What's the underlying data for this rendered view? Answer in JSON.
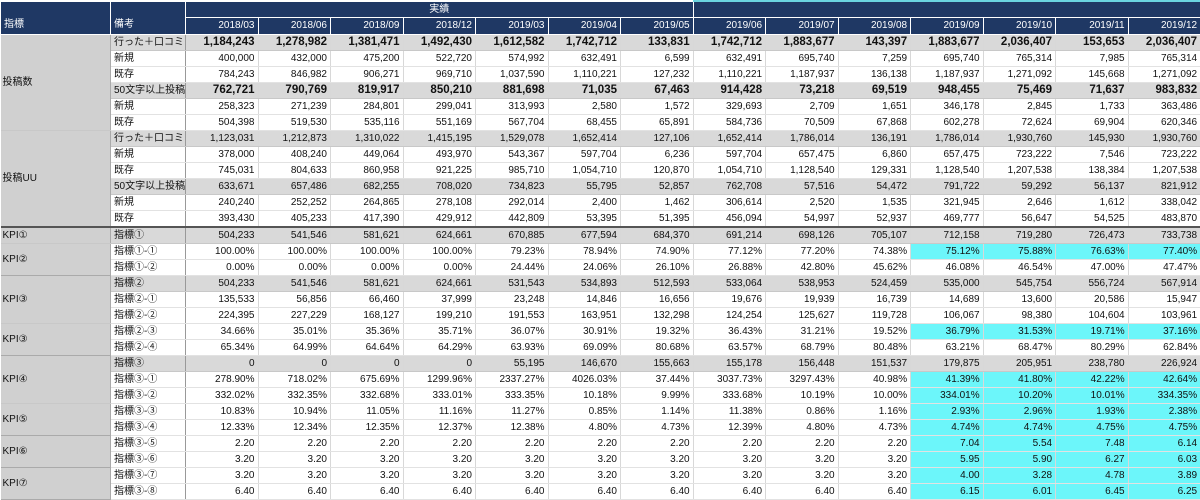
{
  "header": {
    "index_label": "指標",
    "note_label": "備考",
    "actual_label": "実績",
    "months": [
      "2018/03",
      "2018/06",
      "2018/09",
      "2018/12",
      "2019/03",
      "2019/04",
      "2019/05",
      "2019/06",
      "2019/07",
      "2019/08",
      "2019/09",
      "2019/10",
      "2019/11",
      "2019/12"
    ]
  },
  "colors": {
    "header_bg": "#1f3864",
    "group_gray": "#d9d9d9",
    "highlight_cyan": "#6cf6fa"
  },
  "rows": [
    {
      "group": "投稿数",
      "span": 6,
      "label": "行った＋口コミ",
      "gray": true,
      "bold": true,
      "values": [
        "1,184,243",
        "1,278,982",
        "1,381,471",
        "1,492,430",
        "1,612,582",
        "1,742,712",
        "133,831",
        "1,742,712",
        "1,883,677",
        "143,397",
        "1,883,677",
        "2,036,407",
        "153,653",
        "2,036,407"
      ],
      "hl": []
    },
    {
      "label": "新規",
      "values": [
        "400,000",
        "432,000",
        "475,200",
        "522,720",
        "574,992",
        "632,491",
        "6,599",
        "632,491",
        "695,740",
        "7,259",
        "695,740",
        "765,314",
        "7,985",
        "765,314"
      ],
      "hl": []
    },
    {
      "label": "既存",
      "values": [
        "784,243",
        "846,982",
        "906,271",
        "969,710",
        "1,037,590",
        "1,110,221",
        "127,232",
        "1,110,221",
        "1,187,937",
        "136,138",
        "1,187,937",
        "1,271,092",
        "145,668",
        "1,271,092"
      ],
      "hl": []
    },
    {
      "label": "50文字以上投稿",
      "gray": true,
      "bold": true,
      "values": [
        "762,721",
        "790,769",
        "819,917",
        "850,210",
        "881,698",
        "71,035",
        "67,463",
        "914,428",
        "73,218",
        "69,519",
        "948,455",
        "75,469",
        "71,637",
        "983,832"
      ],
      "hl": []
    },
    {
      "label": "新規",
      "values": [
        "258,323",
        "271,239",
        "284,801",
        "299,041",
        "313,993",
        "2,580",
        "1,572",
        "329,693",
        "2,709",
        "1,651",
        "346,178",
        "2,845",
        "1,733",
        "363,486"
      ],
      "hl": []
    },
    {
      "label": "既存",
      "values": [
        "504,398",
        "519,530",
        "535,116",
        "551,169",
        "567,704",
        "68,455",
        "65,891",
        "584,736",
        "70,509",
        "67,868",
        "602,278",
        "72,624",
        "69,904",
        "620,346"
      ],
      "hl": []
    },
    {
      "group": "投稿UU",
      "span": 6,
      "label": "行った＋口コミ",
      "gray": true,
      "values": [
        "1,123,031",
        "1,212,873",
        "1,310,022",
        "1,415,195",
        "1,529,078",
        "1,652,414",
        "127,106",
        "1,652,414",
        "1,786,014",
        "136,191",
        "1,786,014",
        "1,930,760",
        "145,930",
        "1,930,760"
      ],
      "hl": []
    },
    {
      "label": "新規",
      "values": [
        "378,000",
        "408,240",
        "449,064",
        "493,970",
        "543,367",
        "597,704",
        "6,236",
        "597,704",
        "657,475",
        "6,860",
        "657,475",
        "723,222",
        "7,546",
        "723,222"
      ],
      "hl": []
    },
    {
      "label": "既存",
      "values": [
        "745,031",
        "804,633",
        "860,958",
        "921,225",
        "985,710",
        "1,054,710",
        "120,870",
        "1,054,710",
        "1,128,540",
        "129,331",
        "1,128,540",
        "1,207,538",
        "138,384",
        "1,207,538"
      ],
      "hl": []
    },
    {
      "label": "50文字以上投稿",
      "gray": true,
      "values": [
        "633,671",
        "657,486",
        "682,255",
        "708,020",
        "734,823",
        "55,795",
        "52,857",
        "762,708",
        "57,516",
        "54,472",
        "791,722",
        "59,292",
        "56,137",
        "821,912"
      ],
      "hl": []
    },
    {
      "label": "新規",
      "values": [
        "240,240",
        "252,252",
        "264,865",
        "278,108",
        "292,014",
        "2,400",
        "1,462",
        "306,614",
        "2,520",
        "1,535",
        "321,945",
        "2,646",
        "1,612",
        "338,042"
      ],
      "hl": []
    },
    {
      "label": "既存",
      "values": [
        "393,430",
        "405,233",
        "417,390",
        "429,912",
        "442,809",
        "53,395",
        "51,395",
        "456,094",
        "54,997",
        "52,937",
        "469,777",
        "56,647",
        "54,525",
        "483,870"
      ],
      "hl": []
    },
    {
      "group": "KPI①",
      "span": 1,
      "sep": true,
      "label": "指標①",
      "gray": true,
      "values": [
        "504,233",
        "541,546",
        "581,621",
        "624,661",
        "670,885",
        "677,594",
        "684,370",
        "691,214",
        "698,126",
        "705,107",
        "712,158",
        "719,280",
        "726,473",
        "733,738"
      ],
      "hl": []
    },
    {
      "group": "KPI②",
      "span": 2,
      "label": "指標①-①",
      "values": [
        "100.00%",
        "100.00%",
        "100.00%",
        "100.00%",
        "79.23%",
        "78.94%",
        "74.90%",
        "77.12%",
        "77.20%",
        "74.38%",
        "75.12%",
        "75.88%",
        "76.63%",
        "77.40%"
      ],
      "hl": [
        10,
        11,
        12,
        13
      ]
    },
    {
      "label": "指標①-②",
      "values": [
        "0.00%",
        "0.00%",
        "0.00%",
        "0.00%",
        "24.44%",
        "24.06%",
        "26.10%",
        "26.88%",
        "42.80%",
        "45.62%",
        "46.08%",
        "46.54%",
        "47.00%",
        "47.47%"
      ],
      "hl": []
    },
    {
      "group": "KPI③",
      "span": 3,
      "label": "指標②",
      "gray": true,
      "values": [
        "504,233",
        "541,546",
        "581,621",
        "624,661",
        "531,543",
        "534,893",
        "512,593",
        "533,064",
        "538,953",
        "524,459",
        "535,000",
        "545,754",
        "556,724",
        "567,914"
      ],
      "hl": []
    },
    {
      "label": "指標②-①",
      "values": [
        "135,533",
        "56,856",
        "66,460",
        "37,999",
        "23,248",
        "14,846",
        "16,656",
        "19,676",
        "19,939",
        "16,739",
        "14,689",
        "13,600",
        "20,586",
        "15,947"
      ],
      "hl": []
    },
    {
      "label": "指標②-②",
      "values": [
        "224,395",
        "227,229",
        "168,127",
        "199,210",
        "191,553",
        "163,951",
        "132,298",
        "124,254",
        "125,627",
        "119,728",
        "106,067",
        "98,380",
        "104,604",
        "103,961"
      ],
      "hl": []
    },
    {
      "group": "KPI③",
      "span": 2,
      "label": "指標②-③",
      "values": [
        "34.66%",
        "35.01%",
        "35.36%",
        "35.71%",
        "36.07%",
        "30.91%",
        "19.32%",
        "36.43%",
        "31.21%",
        "19.52%",
        "36.79%",
        "31.53%",
        "19.71%",
        "37.16%"
      ],
      "hl": [
        10,
        11,
        12,
        13
      ]
    },
    {
      "label": "指標②-④",
      "values": [
        "65.34%",
        "64.99%",
        "64.64%",
        "64.29%",
        "63.93%",
        "69.09%",
        "80.68%",
        "63.57%",
        "68.79%",
        "80.48%",
        "63.21%",
        "68.47%",
        "80.29%",
        "62.84%"
      ],
      "hl": []
    },
    {
      "group": "KPI④",
      "span": 3,
      "label": "指標③",
      "gray": true,
      "values": [
        "0",
        "0",
        "0",
        "0",
        "55,195",
        "146,670",
        "155,663",
        "155,178",
        "156,448",
        "151,537",
        "179,875",
        "205,951",
        "238,780",
        "226,924"
      ],
      "hl": []
    },
    {
      "label": "指標③-①",
      "values": [
        "278.90%",
        "718.02%",
        "675.69%",
        "1299.96%",
        "2337.27%",
        "4026.03%",
        "37.44%",
        "3037.73%",
        "3297.43%",
        "40.98%",
        "41.39%",
        "41.80%",
        "42.22%",
        "42.64%"
      ],
      "hl": [
        10,
        11,
        12,
        13
      ]
    },
    {
      "label": "指標③-②",
      "values": [
        "332.02%",
        "332.35%",
        "332.68%",
        "333.01%",
        "333.35%",
        "10.18%",
        "9.99%",
        "333.68%",
        "10.19%",
        "10.00%",
        "334.01%",
        "10.20%",
        "10.01%",
        "334.35%"
      ],
      "hl": [
        10,
        11,
        12,
        13
      ]
    },
    {
      "group": "KPI⑤",
      "span": 2,
      "label": "指標③-③",
      "values": [
        "10.83%",
        "10.94%",
        "11.05%",
        "11.16%",
        "11.27%",
        "0.85%",
        "1.14%",
        "11.38%",
        "0.86%",
        "1.16%",
        "2.93%",
        "2.96%",
        "1.93%",
        "2.38%"
      ],
      "hl": [
        10,
        11,
        12,
        13
      ]
    },
    {
      "label": "指標③-④",
      "values": [
        "12.33%",
        "12.34%",
        "12.35%",
        "12.37%",
        "12.38%",
        "4.80%",
        "4.73%",
        "12.39%",
        "4.80%",
        "4.73%",
        "4.74%",
        "4.74%",
        "4.75%",
        "4.75%"
      ],
      "hl": [
        10,
        11,
        12,
        13
      ]
    },
    {
      "group": "KPI⑥",
      "span": 2,
      "label": "指標③-⑤",
      "values": [
        "2.20",
        "2.20",
        "2.20",
        "2.20",
        "2.20",
        "2.20",
        "2.20",
        "2.20",
        "2.20",
        "2.20",
        "7.04",
        "5.54",
        "7.48",
        "6.14"
      ],
      "hl": [
        10,
        11,
        12,
        13
      ]
    },
    {
      "label": "指標③-⑥",
      "values": [
        "3.20",
        "3.20",
        "3.20",
        "3.20",
        "3.20",
        "3.20",
        "3.20",
        "3.20",
        "3.20",
        "3.20",
        "5.95",
        "5.90",
        "6.27",
        "6.03"
      ],
      "hl": [
        10,
        11,
        12,
        13
      ]
    },
    {
      "group": "KPI⑦",
      "span": 2,
      "label": "指標③-⑦",
      "values": [
        "3.20",
        "3.20",
        "3.20",
        "3.20",
        "3.20",
        "3.20",
        "3.20",
        "3.20",
        "3.20",
        "3.20",
        "4.00",
        "3.28",
        "4.78",
        "3.89"
      ],
      "hl": [
        10,
        11,
        12,
        13
      ]
    },
    {
      "label": "指標③-⑧",
      "values": [
        "6.40",
        "6.40",
        "6.40",
        "6.40",
        "6.40",
        "6.40",
        "6.40",
        "6.40",
        "6.40",
        "6.40",
        "6.15",
        "6.01",
        "6.45",
        "6.25"
      ],
      "hl": [
        10,
        11,
        12,
        13
      ]
    }
  ]
}
